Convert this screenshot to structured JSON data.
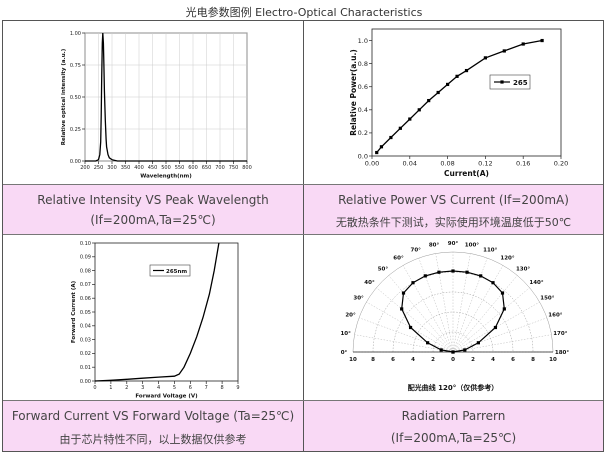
{
  "page_title": "光电参数图例 Electro-Optical Characteristics",
  "captions": [
    {
      "line1": "Relative Intensity VS Peak Wavelength",
      "line2": "(If=200mA,Ta=25℃)"
    },
    {
      "line1": "Relative Power VS Current (If=200mA)",
      "line2": "无散热条件下测试，实际使用环境温度低于50℃"
    },
    {
      "line1": "Forward Current VS Forward Voltage (Ta=25℃)",
      "line2": "由于芯片特性不同，以上数据仅供参考"
    },
    {
      "line1": "Radiation Parrern",
      "line2": "(If=200mA,Ta=25℃)"
    }
  ],
  "chart_data": [
    {
      "type": "line",
      "xlabel": "Wavelength(nm)",
      "ylabel": "Relative optical intensity (a.u.)",
      "xlim": [
        200,
        800
      ],
      "ylim": [
        0,
        1.0
      ],
      "xticks": [
        "200",
        "250",
        "300",
        "350",
        "400",
        "450",
        "500",
        "550",
        "600",
        "650",
        "700",
        "750",
        "800"
      ],
      "yticks": [
        "0.00",
        "0.25",
        "0.50",
        "0.75",
        "1.00"
      ],
      "grid": true,
      "x": [
        200,
        240,
        250,
        255,
        258,
        260,
        262,
        264,
        266,
        268,
        270,
        272,
        275,
        278,
        280,
        285,
        290,
        300,
        320,
        350,
        400,
        800
      ],
      "y": [
        0,
        0,
        0.01,
        0.05,
        0.15,
        0.35,
        0.65,
        0.92,
        1.0,
        0.92,
        0.75,
        0.55,
        0.32,
        0.17,
        0.11,
        0.05,
        0.025,
        0.01,
        0,
        0,
        0,
        0
      ]
    },
    {
      "type": "line",
      "xlabel": "Current(A)",
      "ylabel": "Relative Power(a.u.)",
      "xlim": [
        0,
        0.2
      ],
      "ylim": [
        0,
        1.1
      ],
      "xticks": [
        "0.00",
        "0.04",
        "0.08",
        "0.12",
        "0.16",
        "0.20"
      ],
      "yticks": [
        "0.0",
        "0.2",
        "0.4",
        "0.6",
        "0.8",
        "1.0"
      ],
      "grid": false,
      "legend": "top-right",
      "series": [
        {
          "name": "265",
          "x": [
            0.005,
            0.01,
            0.02,
            0.03,
            0.04,
            0.05,
            0.06,
            0.07,
            0.08,
            0.09,
            0.1,
            0.12,
            0.14,
            0.16,
            0.18
          ],
          "y": [
            0.03,
            0.08,
            0.16,
            0.24,
            0.32,
            0.4,
            0.48,
            0.55,
            0.62,
            0.69,
            0.74,
            0.85,
            0.91,
            0.97,
            1.0
          ]
        }
      ]
    },
    {
      "type": "line",
      "xlabel": "Forward Voltage (V)",
      "ylabel": "Forward Current (A)",
      "xlim": [
        0,
        9
      ],
      "ylim": [
        0,
        0.1
      ],
      "xticks": [
        "0",
        "1",
        "2",
        "3",
        "4",
        "5",
        "6",
        "7",
        "8",
        "9"
      ],
      "yticks": [
        "0.00",
        "0.01",
        "0.02",
        "0.03",
        "0.04",
        "0.05",
        "0.06",
        "0.07",
        "0.08",
        "0.09",
        "0.10"
      ],
      "grid": false,
      "legend": "top-right",
      "series": [
        {
          "name": "265nm",
          "x": [
            0,
            1,
            2,
            3,
            4,
            5,
            5.3,
            5.6,
            6.0,
            6.4,
            6.8,
            7.2,
            7.5,
            7.8
          ],
          "y": [
            0,
            0.0005,
            0.0012,
            0.002,
            0.0028,
            0.0035,
            0.005,
            0.01,
            0.02,
            0.032,
            0.046,
            0.063,
            0.08,
            0.1
          ]
        }
      ]
    },
    {
      "type": "line",
      "title": "配光曲线 120°（仅供参考）",
      "angle_labels": [
        "0°",
        "10°",
        "20°",
        "30°",
        "40°",
        "50°",
        "60°",
        "70°",
        "80°",
        "90°",
        "100°",
        "110°",
        "120°",
        "130°",
        "140°",
        "150°",
        "160°",
        "170°",
        "180°"
      ],
      "radius_labels": [
        "10",
        "8",
        "6",
        "4",
        "2",
        "0",
        "2",
        "4",
        "6",
        "8",
        "10"
      ],
      "angles_deg": [
        10,
        20,
        30,
        40,
        50,
        60,
        70,
        80,
        90,
        100,
        110,
        120,
        130,
        140,
        150,
        160,
        170
      ],
      "values": [
        1.2,
        2.7,
        4.9,
        6.7,
        7.7,
        8.0,
        8.1,
        8.1,
        8.1,
        8.1,
        8.1,
        8.0,
        7.7,
        6.7,
        4.9,
        2.7,
        1.2
      ]
    }
  ]
}
